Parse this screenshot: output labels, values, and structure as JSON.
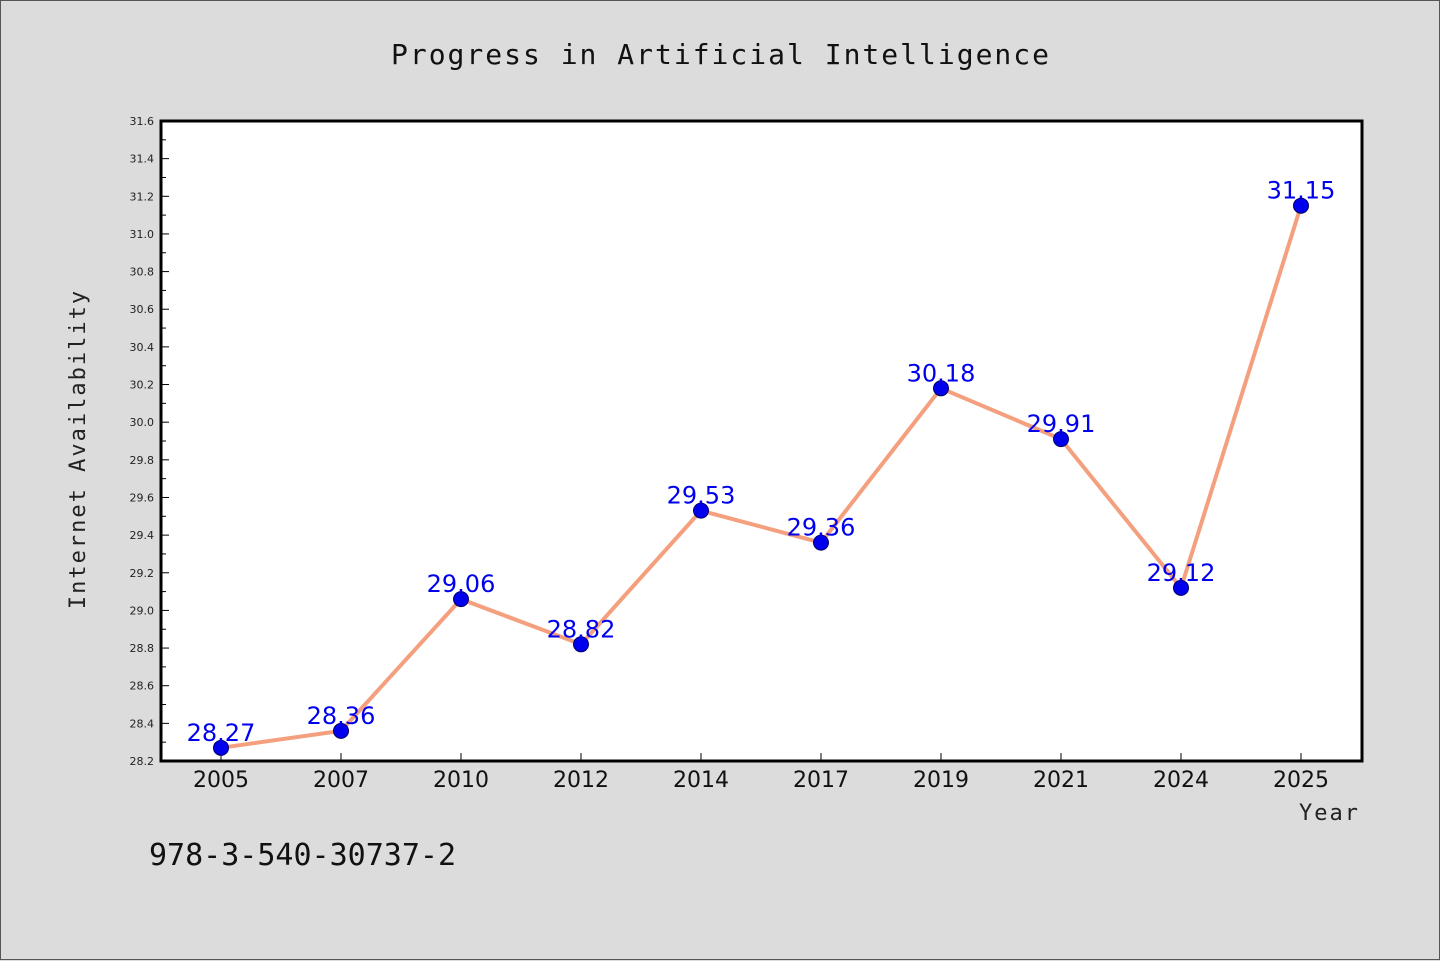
{
  "chart_data": {
    "type": "line",
    "title": "Progress in Artificial Intelligence",
    "xlabel": "Year",
    "ylabel": "Internet Availability",
    "categories": [
      "2005",
      "2007",
      "2010",
      "2012",
      "2014",
      "2017",
      "2019",
      "2021",
      "2024",
      "2025"
    ],
    "series": [
      {
        "values": [
          28.27,
          28.36,
          29.06,
          28.82,
          29.53,
          29.36,
          30.18,
          29.91,
          29.12,
          31.15
        ]
      }
    ],
    "data_labels": [
      "28.27",
      "28.36",
      "29.06",
      "28.82",
      "29.53",
      "29.36",
      "30.18",
      "29.91",
      "29.12",
      "31.15"
    ],
    "ylim": [
      28.2,
      31.6
    ],
    "yticks": [
      "28.2",
      "28.4",
      "28.6",
      "28.8",
      "29.0",
      "29.2",
      "29.4",
      "29.6",
      "29.8",
      "30.0",
      "30.2",
      "30.4",
      "30.6",
      "30.8",
      "31.0",
      "31.2",
      "31.4",
      "31.6"
    ],
    "grid": false,
    "legend": "none",
    "line_color": "#f4a07e",
    "marker_color": "#0000ee",
    "label_color": "#0000ee",
    "plot_background": "#ffffff",
    "figure_background": "#dcdcdc"
  },
  "footnote": "978-3-540-30737-2"
}
